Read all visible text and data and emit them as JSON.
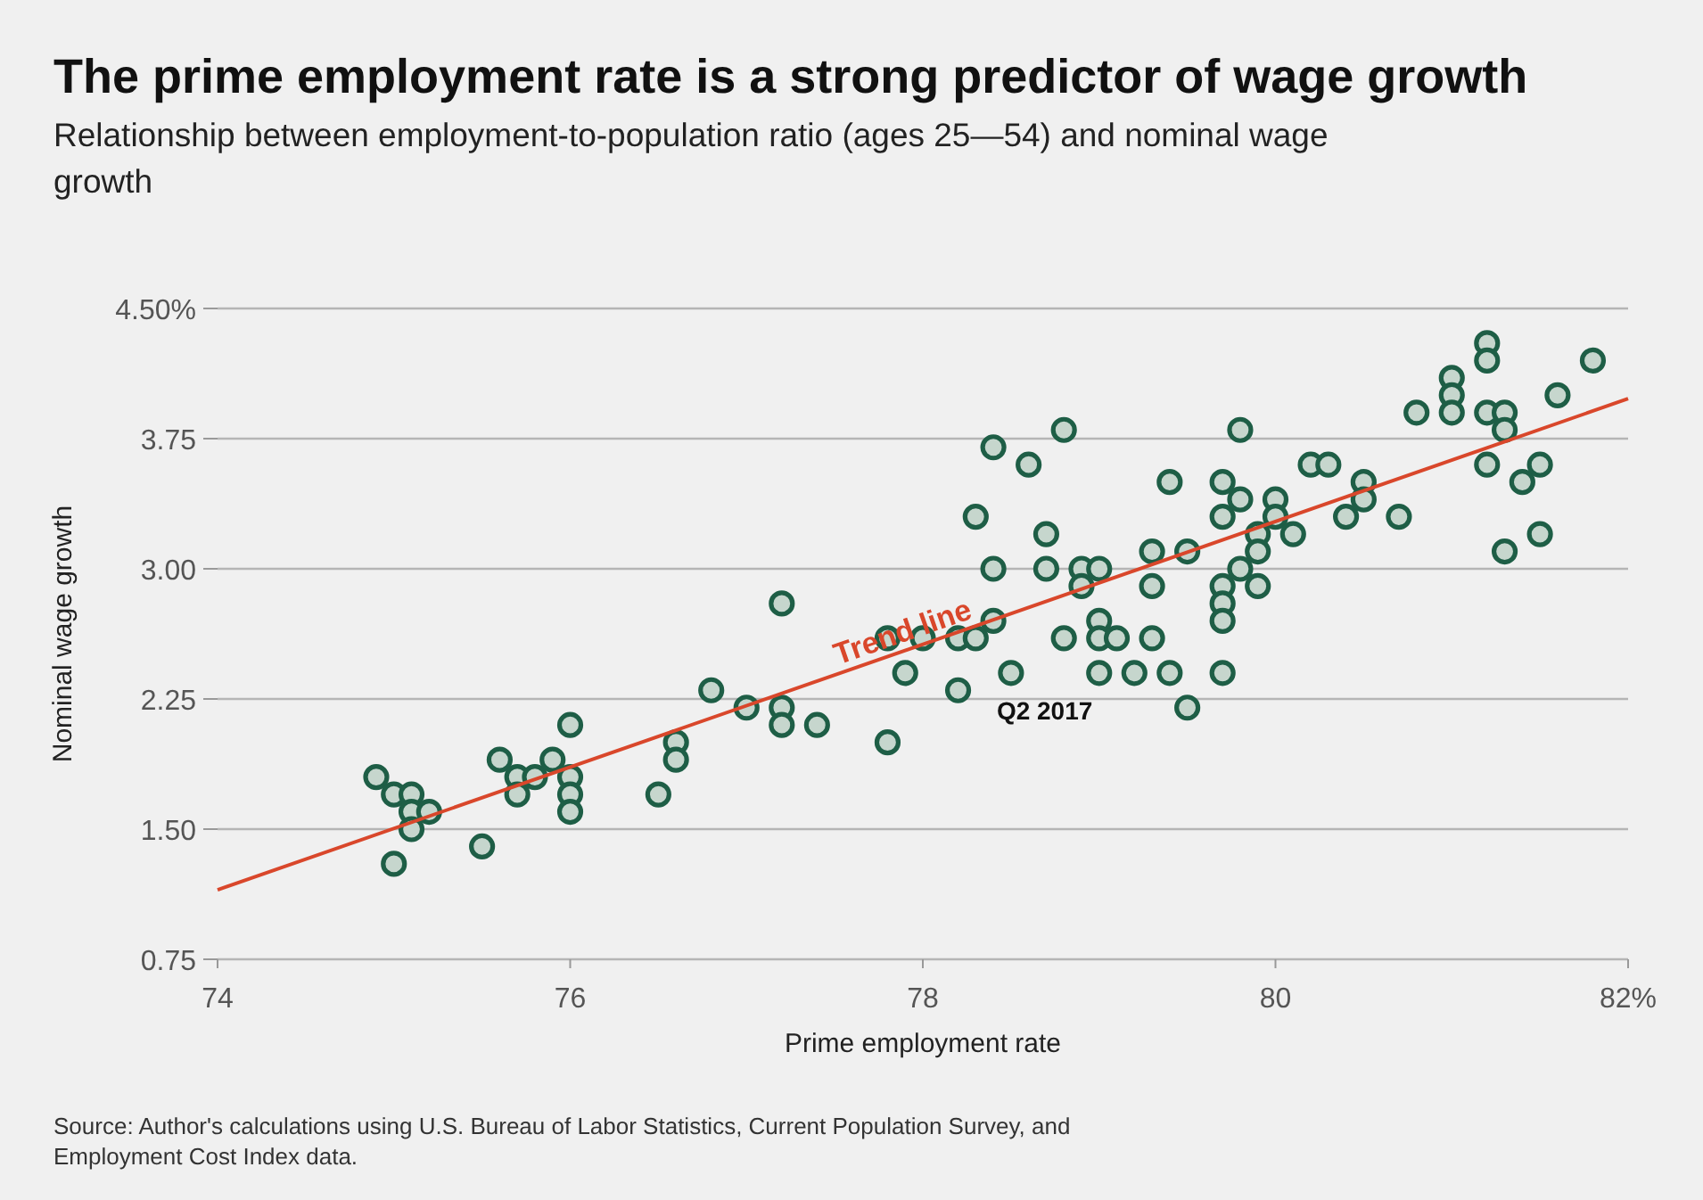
{
  "chart_data": {
    "type": "scatter",
    "title": "The prime employment rate is a strong predictor of wage growth",
    "subtitle": "Relationship between employment-to-population ratio (ages 25—54) and nominal wage growth",
    "xlabel": "Prime employment rate",
    "ylabel": "Nominal wage growth",
    "annotations": [
      {
        "text": "Q2 2017",
        "x": 78.5,
        "y": 2.4
      },
      "Source: Author's calculations using U.S. Bureau of Labor Statistics, Current Population Survey, and Employment Cost Index data."
    ],
    "xlim": [
      74,
      82
    ],
    "xticks": [
      74,
      76,
      78,
      80,
      {
        "value": 82,
        "label": "82%"
      }
    ],
    "ylim": [
      0.75,
      4.5
    ],
    "yticks": [
      {
        "value": 0.75,
        "label": "0.75"
      },
      {
        "value": 1.5,
        "label": "1.50"
      },
      {
        "value": 2.25,
        "label": "2.25"
      },
      {
        "value": 3,
        "label": "3.00"
      },
      {
        "value": 3.75,
        "label": "3.75"
      },
      {
        "value": 4.5,
        "label": "4.50%"
      }
    ],
    "grid": "y",
    "series": [
      {
        "marker": "circle",
        "color": "#1e5e46",
        "x": [
          74.9,
          75.0,
          75.0,
          75.1,
          75.1,
          75.1,
          75.2,
          75.5,
          75.6,
          75.7,
          75.7,
          75.8,
          75.9,
          76.0,
          76.0,
          76.0,
          76.0,
          76.5,
          76.6,
          76.6,
          76.8,
          77.0,
          77.2,
          77.2,
          77.2,
          77.4,
          77.8,
          77.8,
          77.9,
          78.0,
          78.2,
          78.2,
          78.3,
          78.3,
          78.4,
          78.4,
          78.4,
          78.5,
          78.6,
          78.7,
          78.7,
          78.8,
          78.8,
          78.9,
          78.9,
          79.0,
          79.0,
          79.0,
          79.0,
          79.1,
          79.2,
          79.3,
          79.3,
          79.3,
          79.4,
          79.4,
          79.5,
          79.5,
          79.7,
          79.7,
          79.7,
          79.7,
          79.7,
          79.7,
          79.8,
          79.8,
          79.8,
          79.9,
          79.9,
          79.9,
          80.0,
          80.0,
          80.1,
          80.2,
          80.3,
          80.4,
          80.5,
          80.5,
          80.7,
          80.8,
          81.0,
          81.0,
          81.0,
          81.2,
          81.2,
          81.2,
          81.2,
          81.3,
          81.3,
          81.3,
          81.4,
          81.5,
          81.5,
          81.6,
          81.8
        ],
        "values": [
          1.8,
          1.7,
          1.3,
          1.7,
          1.6,
          1.5,
          1.6,
          1.4,
          1.9,
          1.8,
          1.7,
          1.8,
          1.9,
          2.1,
          1.8,
          1.7,
          1.6,
          1.7,
          2.0,
          1.9,
          2.3,
          2.2,
          2.8,
          2.2,
          2.1,
          2.1,
          2.6,
          2.0,
          2.4,
          2.6,
          2.6,
          2.3,
          3.3,
          2.6,
          3.7,
          3.0,
          2.7,
          2.4,
          3.6,
          3.2,
          3.0,
          3.8,
          2.6,
          3.0,
          2.9,
          3.0,
          2.7,
          2.6,
          2.4,
          2.6,
          2.4,
          3.1,
          2.9,
          2.6,
          3.5,
          2.4,
          3.1,
          2.2,
          3.5,
          3.3,
          2.9,
          2.8,
          2.7,
          2.4,
          3.8,
          3.4,
          3.0,
          3.2,
          3.1,
          2.9,
          3.4,
          3.3,
          3.2,
          3.6,
          3.6,
          3.3,
          3.5,
          3.4,
          3.3,
          3.9,
          4.1,
          4.0,
          3.9,
          4.3,
          4.2,
          3.9,
          3.6,
          3.9,
          3.8,
          3.1,
          3.5,
          3.6,
          3.2,
          4.0,
          4.2
        ]
      },
      {
        "type": "line",
        "name": "Trend line",
        "color": "#d9472b",
        "x": [
          74,
          82
        ],
        "values": [
          1.15,
          3.98
        ]
      }
    ]
  }
}
